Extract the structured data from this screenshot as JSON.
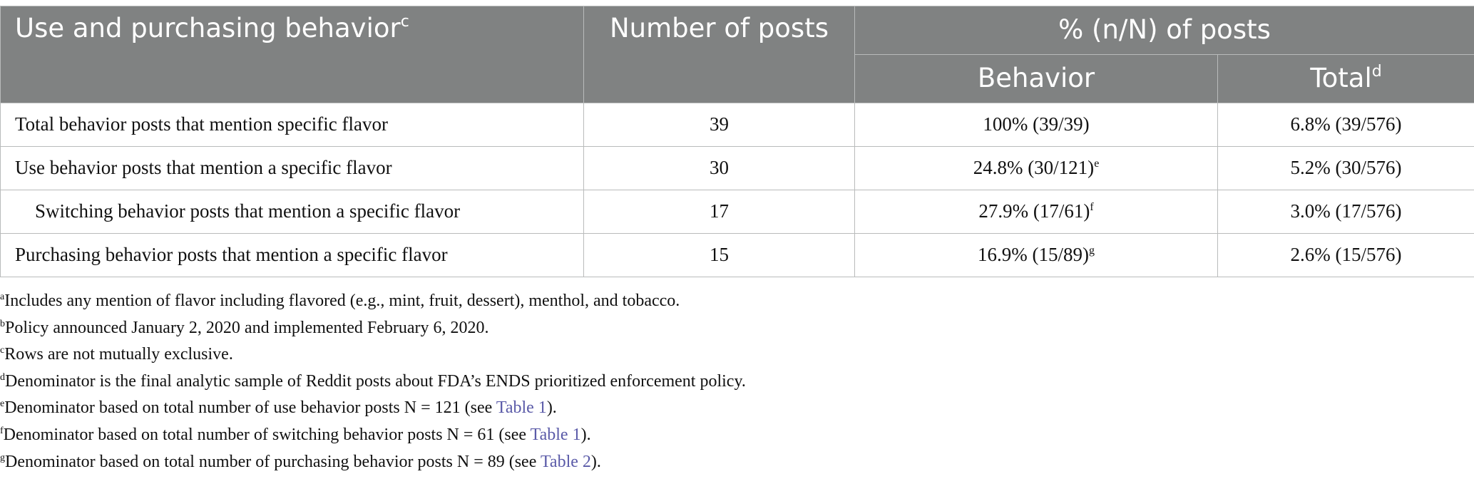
{
  "table": {
    "header": {
      "col1": "Use and purchasing behavior",
      "col1_sup": "c",
      "col2": "Number of posts",
      "group": "% (n/N) of posts",
      "sub_behavior": "Behavior",
      "sub_total": "Total",
      "sub_total_sup": "d"
    },
    "rows": [
      {
        "label": "Total behavior posts that mention specific flavor",
        "count": "39",
        "behavior": "100% (39/39)",
        "behavior_sup": "",
        "total": "6.8% (39/576)"
      },
      {
        "label": "Use behavior posts that mention a specific flavor",
        "count": "30",
        "behavior": "24.8% (30/121)",
        "behavior_sup": "e",
        "total": "5.2% (30/576)"
      },
      {
        "label": "Switching behavior posts that mention a specific flavor",
        "count": "17",
        "behavior": "27.9% (17/61)",
        "behavior_sup": "f",
        "total": "3.0% (17/576)"
      },
      {
        "label": "Purchasing behavior posts that mention a specific flavor",
        "count": "15",
        "behavior": "16.9% (15/89)",
        "behavior_sup": "g",
        "total": "2.6% (15/576)"
      }
    ]
  },
  "footnotes": [
    {
      "mark": "a",
      "text": "Includes any mention of flavor including flavored (e.g., mint, fruit, dessert), menthol, and tobacco."
    },
    {
      "mark": "b",
      "text": "Policy announced January 2, 2020 and implemented February 6, 2020."
    },
    {
      "mark": "c",
      "text": "Rows are not mutually exclusive."
    },
    {
      "mark": "d",
      "text": "Denominator is the final analytic sample of Reddit posts about FDA’s ENDS prioritized enforcement policy."
    },
    {
      "mark": "e",
      "text": "Denominator based on total number of use behavior posts N = 121 (see ",
      "link": "Table 1",
      "after": ")."
    },
    {
      "mark": "f",
      "text": "Denominator based on total number of switching behavior posts N = 61 (see ",
      "link": "Table 1",
      "after": ")."
    },
    {
      "mark": "g",
      "text": "Denominator based on total number of purchasing behavior posts N = 89 (see ",
      "link": "Table 2",
      "after": ")."
    }
  ],
  "colors": {
    "header_bg": "#808282",
    "link": "#5a5aa8",
    "border": "#b9bbbb"
  }
}
